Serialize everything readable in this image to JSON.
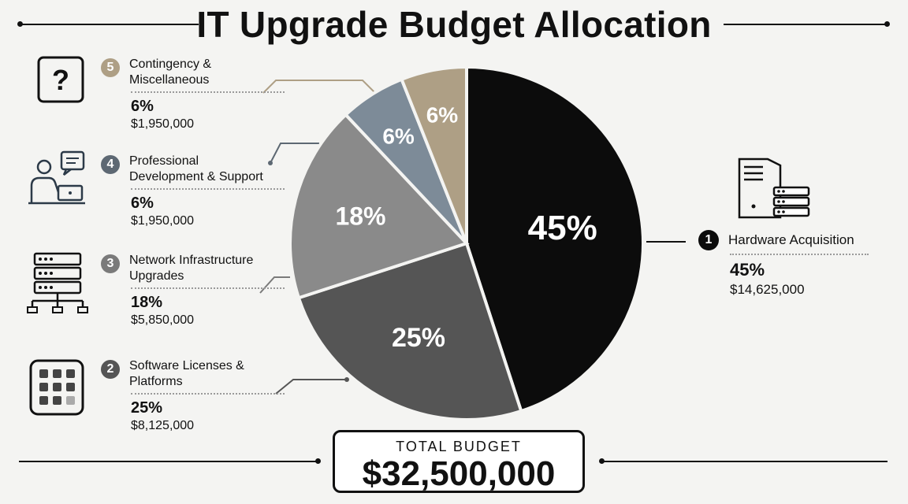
{
  "title": "IT Upgrade Budget Allocation",
  "total": {
    "label": "TOTAL  BUDGET",
    "value": "$32,500,000"
  },
  "chart_data": {
    "type": "pie",
    "title": "IT Upgrade Budget Allocation",
    "slices": [
      {
        "number": "1",
        "label": "Hardware Acquisition",
        "value": 45,
        "pct_label": "45%",
        "amount": "$14,625,000",
        "color": "#0c0c0c"
      },
      {
        "number": "2",
        "label": "Software Licenses & Platforms",
        "value": 25,
        "pct_label": "25%",
        "amount": "$8,125,000",
        "color": "#555555"
      },
      {
        "number": "3",
        "label": "Network Infrastructure Upgrades",
        "value": 18,
        "pct_label": "18%",
        "amount": "$5,850,000",
        "color": "#8a8a8a"
      },
      {
        "number": "4",
        "label": "Professional Development & Support",
        "value": 6,
        "pct_label": "6%",
        "amount": "$1,950,000",
        "color": "#7d8b98"
      },
      {
        "number": "5",
        "label": "Contingency & Miscellaneous",
        "value": 6,
        "pct_label": "6%",
        "amount": "$1,950,000",
        "color": "#ae9f85"
      }
    ]
  },
  "legend": {
    "left": [
      {
        "number": "5",
        "line1": "Contingency &",
        "line2": "Miscellaneous",
        "pct": "6%",
        "amount": "$1,950,000",
        "badge_color": "#ae9f85",
        "icon": "question-icon"
      },
      {
        "number": "4",
        "line1": "Professional",
        "line2": "Development & Support",
        "pct": "6%",
        "amount": "$1,950,000",
        "badge_color": "#5d6873",
        "icon": "support-person-icon"
      },
      {
        "number": "3",
        "line1": "Network Infrastructure",
        "line2": "Upgrades",
        "pct": "18%",
        "amount": "$5,850,000",
        "badge_color": "#7a7a7a",
        "icon": "network-icon"
      },
      {
        "number": "2",
        "line1": "Software Licenses &",
        "line2": "Platforms",
        "pct": "25%",
        "amount": "$8,125,000",
        "badge_color": "#555555",
        "icon": "app-grid-icon"
      }
    ],
    "right": {
      "number": "1",
      "line1": "Hardware Acquisition",
      "pct": "45%",
      "amount": "$14,625,000",
      "badge_color": "#0c0c0c",
      "icon": "server-icon"
    }
  }
}
